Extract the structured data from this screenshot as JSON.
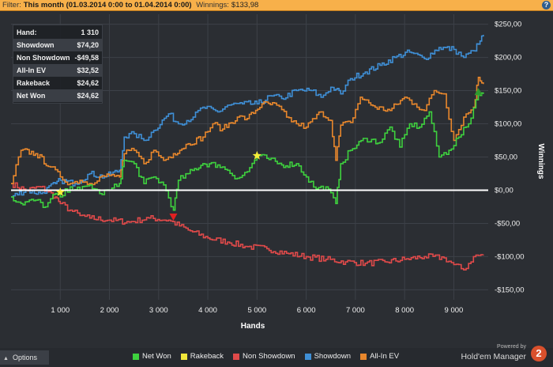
{
  "filter": {
    "label": "Filter:",
    "value": "This month (01.03.2014 0:00 to 01.04.2014 0:00)",
    "winnings_label": "Winnings:",
    "winnings_value": "$133,98",
    "help_icon": "question-mark-icon"
  },
  "stats": [
    {
      "label": "Hand:",
      "value": "1 310"
    },
    {
      "label": "Showdown",
      "value": "$74,20"
    },
    {
      "label": "Non Showdown",
      "value": "-$49,58"
    },
    {
      "label": "All-In EV",
      "value": "$32,52"
    },
    {
      "label": "Rakeback",
      "value": "$24,62"
    },
    {
      "label": "Net Won",
      "value": "$24,62"
    }
  ],
  "chart_data": {
    "type": "line",
    "title": "",
    "xlabel": "Hands",
    "ylabel": "Winnings",
    "x_ticks": [
      1000,
      2000,
      3000,
      4000,
      5000,
      6000,
      7000,
      8000,
      9000
    ],
    "x_tick_labels": [
      "1 000",
      "2 000",
      "3 000",
      "4 000",
      "5 000",
      "6 000",
      "7 000",
      "8 000",
      "9 000"
    ],
    "y_ticks": [
      250,
      200,
      150,
      100,
      50,
      0,
      -50,
      -100,
      -150
    ],
    "y_tick_labels": [
      "$250,00",
      "$200,00",
      "$150,00",
      "$100,00",
      "$50,00",
      "$0,00",
      "-$50,00",
      "-$100,00",
      "-$150,00"
    ],
    "xlim": [
      0,
      9700
    ],
    "ylim": [
      -165,
      265
    ],
    "grid": true,
    "zero_line": true,
    "legend_position": "bottom",
    "series": [
      {
        "name": "Showdown",
        "color": "#3f8fd6",
        "x": [
          0,
          300,
          600,
          900,
          1000,
          1300,
          1600,
          1900,
          2200,
          2300,
          2500,
          2700,
          2900,
          3200,
          3400,
          3700,
          3900,
          4200,
          4400,
          4700,
          5000,
          5300,
          5500,
          5800,
          6100,
          6300,
          6500,
          6600,
          6700,
          6900,
          7200,
          7500,
          7800,
          8100,
          8400,
          8700,
          9000,
          9200,
          9400,
          9500,
          9600
        ],
        "y": [
          -10,
          0,
          -5,
          10,
          15,
          10,
          25,
          20,
          30,
          80,
          85,
          75,
          90,
          115,
          100,
          110,
          125,
          118,
          128,
          130,
          130,
          142,
          138,
          150,
          150,
          140,
          155,
          152,
          145,
          168,
          178,
          188,
          200,
          208,
          198,
          215,
          212,
          200,
          210,
          220,
          234
        ]
      },
      {
        "name": "All-In EV",
        "color": "#e8872c",
        "x": [
          0,
          200,
          500,
          800,
          1000,
          1200,
          1400,
          1600,
          1800,
          2000,
          2200,
          2300,
          2500,
          2700,
          2900,
          3100,
          3300,
          3600,
          3900,
          4100,
          4300,
          4600,
          4800,
          5100,
          5400,
          5600,
          5800,
          6000,
          6300,
          6500,
          6600,
          6700,
          6900,
          7100,
          7400,
          7700,
          8000,
          8200,
          8400,
          8600,
          8800,
          9000,
          9200,
          9400,
          9500,
          9600
        ],
        "y": [
          10,
          60,
          55,
          35,
          20,
          10,
          15,
          10,
          20,
          22,
          20,
          55,
          60,
          40,
          60,
          45,
          55,
          70,
          80,
          100,
          92,
          110,
          108,
          130,
          128,
          110,
          100,
          95,
          118,
          105,
          45,
          98,
          102,
          140,
          125,
          120,
          140,
          130,
          120,
          150,
          145,
          75,
          110,
          125,
          170,
          160
        ]
      },
      {
        "name": "Net Won",
        "color": "#3ed13e",
        "x": [
          0,
          200,
          500,
          700,
          900,
          1000,
          1200,
          1400,
          1600,
          1800,
          2000,
          2200,
          2300,
          2500,
          2700,
          2900,
          3100,
          3300,
          3400,
          3600,
          3900,
          4200,
          4400,
          4600,
          4800,
          5000,
          5200,
          5500,
          5800,
          6000,
          6200,
          6400,
          6600,
          6700,
          6900,
          7200,
          7500,
          7700,
          7900,
          8100,
          8300,
          8500,
          8700,
          8900,
          9100,
          9300,
          9500,
          9600
        ],
        "y": [
          -10,
          -20,
          -15,
          -25,
          -5,
          -10,
          5,
          0,
          8,
          -5,
          0,
          10,
          45,
          40,
          10,
          20,
          8,
          -30,
          15,
          25,
          40,
          38,
          30,
          18,
          28,
          52,
          48,
          38,
          40,
          20,
          2,
          5,
          -20,
          40,
          60,
          78,
          72,
          95,
          65,
          100,
          95,
          118,
          50,
          60,
          80,
          100,
          148,
          145
        ]
      },
      {
        "name": "Non Showdown",
        "color": "#e04a4a",
        "x": [
          0,
          300,
          600,
          900,
          1000,
          1200,
          1400,
          1600,
          2000,
          2400,
          2800,
          3200,
          3600,
          4000,
          4400,
          4800,
          5200,
          5600,
          6000,
          6400,
          6800,
          7200,
          7600,
          8000,
          8400,
          8800,
          9000,
          9200,
          9400,
          9600
        ],
        "y": [
          10,
          0,
          5,
          -10,
          -20,
          -30,
          -38,
          -42,
          -45,
          -48,
          -42,
          -45,
          -60,
          -72,
          -78,
          -85,
          -88,
          -95,
          -100,
          -104,
          -108,
          -110,
          -108,
          -104,
          -100,
          -102,
          -112,
          -120,
          -100,
          -97
        ]
      },
      {
        "name": "Rakeback",
        "color": "#f0e63a",
        "x": [],
        "y": []
      }
    ],
    "markers": [
      {
        "type": "star",
        "x": 1000,
        "y": -3,
        "color": "#f5ee3a"
      },
      {
        "type": "star",
        "x": 5000,
        "y": 52,
        "color": "#f5ee3a"
      },
      {
        "type": "triangle-down",
        "x": 3300,
        "y": -40,
        "color": "#e02020"
      },
      {
        "type": "triangle-up",
        "x": 9500,
        "y": 148,
        "color": "#2e9b2e"
      }
    ]
  },
  "options": {
    "label": "Options",
    "icon": "caret-up-icon"
  },
  "brand": {
    "powered_by": "Powered by",
    "name": "Hold'em Manager",
    "logo_text": "2"
  }
}
